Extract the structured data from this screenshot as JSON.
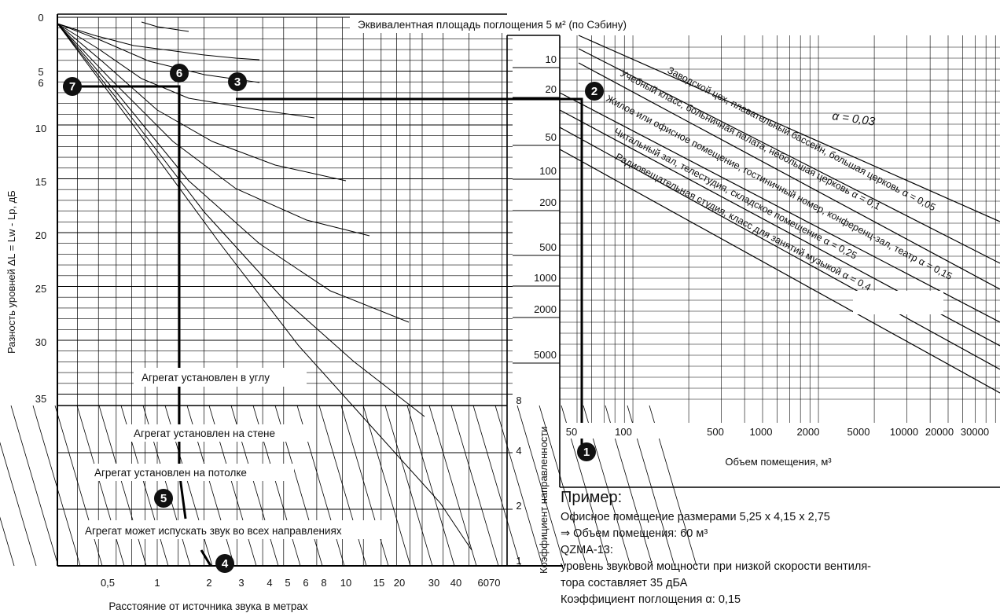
{
  "top_caption": "Эквивалентная площадь поглощения 5 м² (по Сэбину)",
  "left_axis": {
    "title": "Разность уровней ΔL = Lw - Lp, дБ",
    "ticks": [
      "0",
      "5",
      "6",
      "10",
      "15",
      "20",
      "25",
      "30",
      "35"
    ]
  },
  "bottom_axis": {
    "title": "Расстояние от источника звука в метрах",
    "ticks": [
      "0,5",
      "1",
      "2",
      "3",
      "4",
      "5",
      "6",
      "8",
      "10",
      "15",
      "20",
      "30",
      "40",
      "6070"
    ]
  },
  "directivity_axis": {
    "title": "Коэффициент направленности",
    "ticks": [
      "8",
      "4",
      "2",
      "1"
    ]
  },
  "area_ticks": [
    "10",
    "20",
    "50",
    "100",
    "200",
    "500",
    "1000",
    "2000",
    "5000"
  ],
  "volume_axis": {
    "title": "Объем помещения, м³",
    "ticks": [
      "50",
      "100",
      "500",
      "1000",
      "2000",
      "5000",
      "10000",
      "20000",
      "30000"
    ]
  },
  "alpha_free_label": "α = 0,03",
  "room_lines": [
    "Заводской цех, плавательный бассейн, большая церковь α = 0,05",
    "Учебный класс, больничная палата, небольшая церковь α = 0,1",
    "Жилое или офисное помещение, гостиничный номер, конференц-зал, театр α = 0,15",
    "Читальный зал, телестудия, складское помещение α = 0,25",
    "Радиовещательная студия, класс для занятий музыкой α = 0,4"
  ],
  "placement_labels": [
    "Агрегат установлен в углу",
    "Агрегат установлен на стене",
    "Агрегат установлен на потолке",
    "Агрегат может испускать звук во всех направлениях"
  ],
  "markers": [
    "1",
    "2",
    "3",
    "4",
    "5",
    "6",
    "7"
  ],
  "example": {
    "heading": "Пример:",
    "lines": [
      "Офисное помещение размерами 5,25 x 4,15 x 2,75",
      "⇒ Объем помещения: 60 м³",
      "QZMA-13:",
      "уровень звуковой мощности при низкой скорости вентиля-",
      "тора составляет 35 дБА",
      "Коэффициент поглощения α: 0,15"
    ]
  }
}
